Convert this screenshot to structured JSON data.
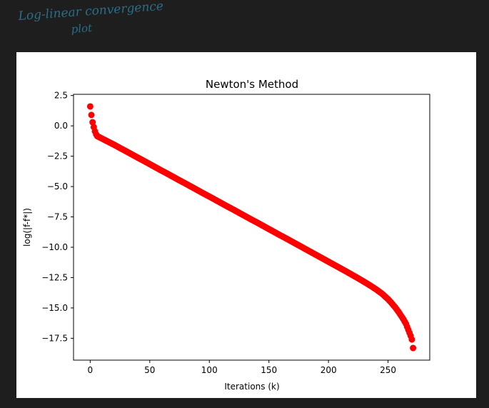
{
  "handwritten_note": {
    "line1": "Log-linear convergence",
    "line2": "plot",
    "color": "#2a6e86"
  },
  "chart_data": {
    "type": "scatter",
    "title": "Newton's Method",
    "xlabel": "Iterations (k)",
    "ylabel": "log(|f-f*|)",
    "xlim": [
      -14,
      285
    ],
    "ylim": [
      -19.3,
      2.6
    ],
    "xticks": [
      0,
      50,
      100,
      150,
      200,
      250
    ],
    "xtick_labels": [
      "0",
      "50",
      "100",
      "150",
      "200",
      "250"
    ],
    "yticks": [
      2.5,
      0.0,
      -2.5,
      -5.0,
      -7.5,
      -10.0,
      -12.5,
      -15.0,
      -17.5
    ],
    "ytick_labels": [
      "2.5",
      "0.0",
      "−2.5",
      "−5.0",
      "−7.5",
      "−10.0",
      "−12.5",
      "−15.0",
      "−17.5"
    ],
    "marker_color": "#ff0000",
    "grid": false,
    "series": [
      {
        "x": [
          0,
          1,
          2,
          3,
          4,
          5,
          6,
          8,
          10,
          15,
          20,
          25,
          30,
          35,
          40,
          45,
          50,
          55,
          60,
          65,
          70,
          75,
          80,
          85,
          90,
          95,
          100,
          105,
          110,
          115,
          120,
          125,
          130,
          135,
          140,
          145,
          150,
          155,
          160,
          165,
          170,
          175,
          180,
          185,
          190,
          195,
          200,
          205,
          210,
          215,
          220,
          225,
          230,
          235,
          240,
          245,
          250,
          253,
          256,
          259,
          261,
          263,
          265,
          266,
          267,
          268,
          269,
          270,
          271
        ],
        "y": [
          1.6,
          0.9,
          0.3,
          -0.1,
          -0.45,
          -0.7,
          -0.85,
          -0.95,
          -1.05,
          -1.3,
          -1.55,
          -1.82,
          -2.08,
          -2.35,
          -2.62,
          -2.88,
          -3.15,
          -3.42,
          -3.69,
          -3.95,
          -4.22,
          -4.49,
          -4.75,
          -5.02,
          -5.29,
          -5.56,
          -5.82,
          -6.09,
          -6.36,
          -6.63,
          -6.89,
          -7.16,
          -7.43,
          -7.7,
          -7.96,
          -8.23,
          -8.5,
          -8.77,
          -9.04,
          -9.3,
          -9.57,
          -9.84,
          -10.11,
          -10.38,
          -10.65,
          -10.92,
          -11.19,
          -11.46,
          -11.73,
          -12.0,
          -12.28,
          -12.56,
          -12.85,
          -13.15,
          -13.47,
          -13.83,
          -14.28,
          -14.6,
          -14.95,
          -15.35,
          -15.65,
          -15.95,
          -16.3,
          -16.55,
          -16.8,
          -17.05,
          -17.3,
          -17.6,
          -18.3
        ]
      }
    ]
  }
}
